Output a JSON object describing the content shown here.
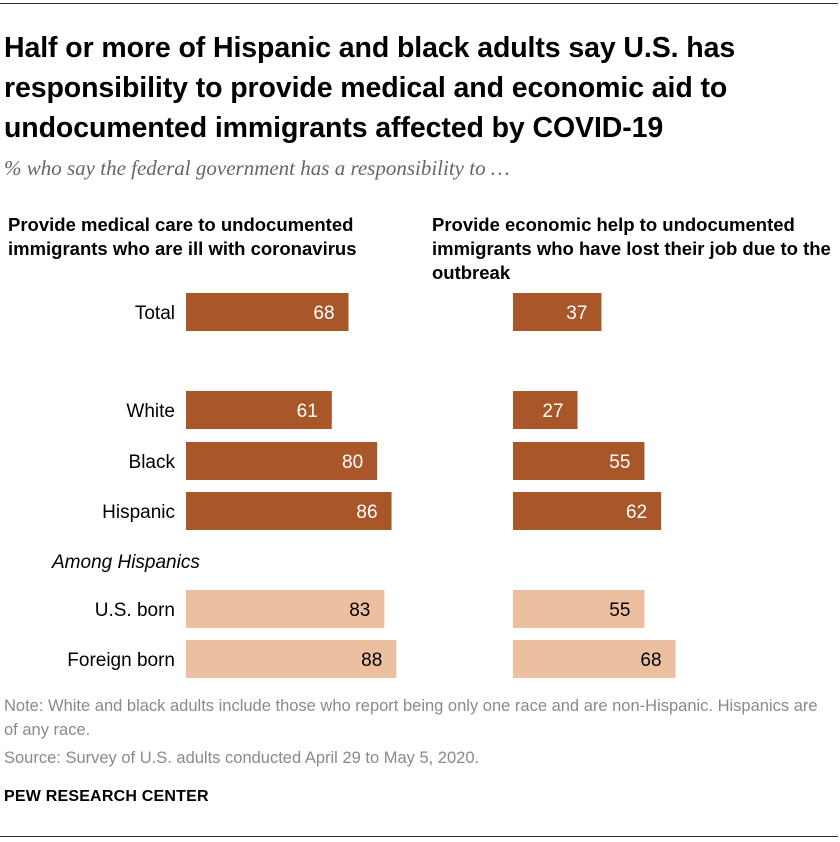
{
  "title": "Half or more of Hispanic and black adults say U.S. has responsibility to provide medical and economic aid to undocumented immigrants affected by COVID-19",
  "subtitle": "% who say the federal government has a responsibility to …",
  "note": "Note: White and black adults include those who report being only one race and are non-Hispanic. Hispanics are of any race.",
  "source": "Source: Survey of U.S. adults conducted April 29 to May 5, 2020.",
  "brand": "PEW RESEARCH CENTER",
  "colors": {
    "dark": "#a95728",
    "light": "#ebbf9f",
    "dark_text": "#ffffff",
    "light_text": "#000000"
  },
  "chart_data": {
    "type": "bar",
    "orientation": "horizontal",
    "group_label": "Among Hispanics",
    "categories": [
      "Total",
      "White",
      "Black",
      "Hispanic",
      "U.S. born",
      "Foreign born"
    ],
    "series": [
      {
        "name": "Provide medical care to undocumented immigrants who are ill with coronavirus",
        "values": [
          68,
          61,
          80,
          86,
          83,
          88
        ]
      },
      {
        "name": "Provide economic help to undocumented immigrants who have lost their job due to the outbreak",
        "values": [
          37,
          27,
          55,
          62,
          55,
          68
        ]
      }
    ],
    "xlim": [
      0,
      100
    ]
  }
}
